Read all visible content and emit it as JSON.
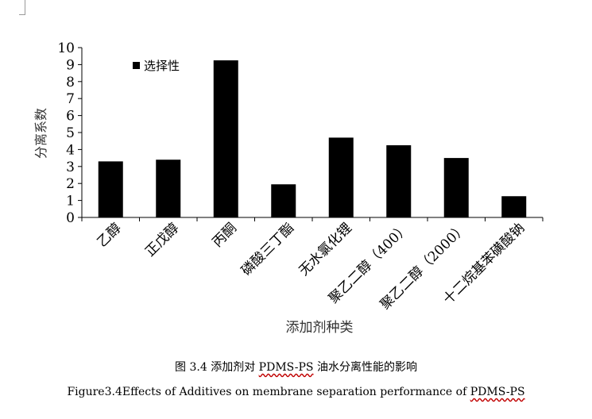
{
  "chart_data": {
    "type": "bar",
    "categories": [
      "乙醇",
      "正戊醇",
      "丙酮",
      "磷酸三丁酯",
      "无水氯化锂",
      "聚乙二醇（400）",
      "聚乙二醇（2000）",
      "十二烷基苯磺酸钠"
    ],
    "series": [
      {
        "name": "选择性",
        "values": [
          3.3,
          3.4,
          9.25,
          1.95,
          4.7,
          4.25,
          3.5,
          1.25
        ]
      }
    ],
    "xlabel": "添加剂种类",
    "ylabel": "分离系数",
    "ylim": [
      0,
      10
    ],
    "yticks": [
      "0",
      "1",
      "2",
      "3",
      "4",
      "5",
      "6",
      "7",
      "8",
      "9",
      "10"
    ],
    "grid": false,
    "legend": "top-left",
    "colors": {
      "bar": "#000000"
    }
  },
  "caption": {
    "cn_prefix": "图 3.4 添加剂对 ",
    "cn_term": "PDMS-PS",
    "cn_suffix": " 油水分离性能的影响",
    "en_prefix": "Figure3.4Effects of Additives on membrane separation performance of ",
    "en_term": "PDMS-PS"
  }
}
